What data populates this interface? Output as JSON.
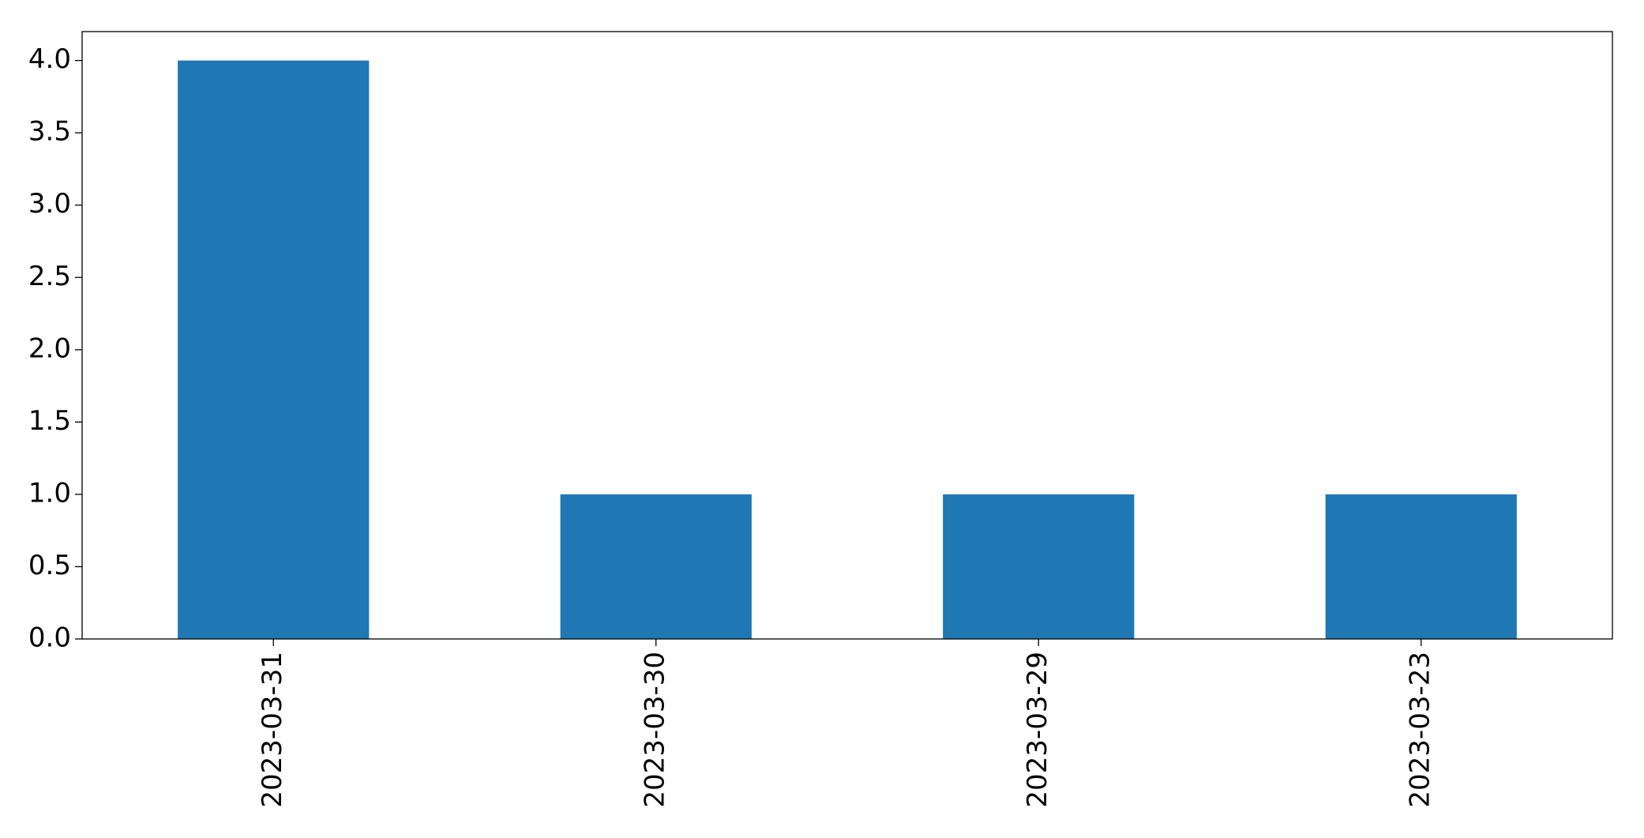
{
  "chart_data": {
    "type": "bar",
    "categories": [
      "2023-03-31",
      "2023-03-30",
      "2023-03-29",
      "2023-03-23"
    ],
    "values": [
      4,
      1,
      1,
      1
    ],
    "color": "#1f77b4",
    "ylim": [
      0,
      4.2
    ],
    "yticks": [
      {
        "value": 0,
        "label": "0.0"
      },
      0.5,
      {
        "value": 1,
        "label": "1.0"
      },
      1.5,
      {
        "value": 2,
        "label": "2.0"
      },
      2.5,
      {
        "value": 3,
        "label": "3.0"
      },
      3.5,
      {
        "value": 4,
        "label": "4.0"
      }
    ],
    "grid": false
  }
}
